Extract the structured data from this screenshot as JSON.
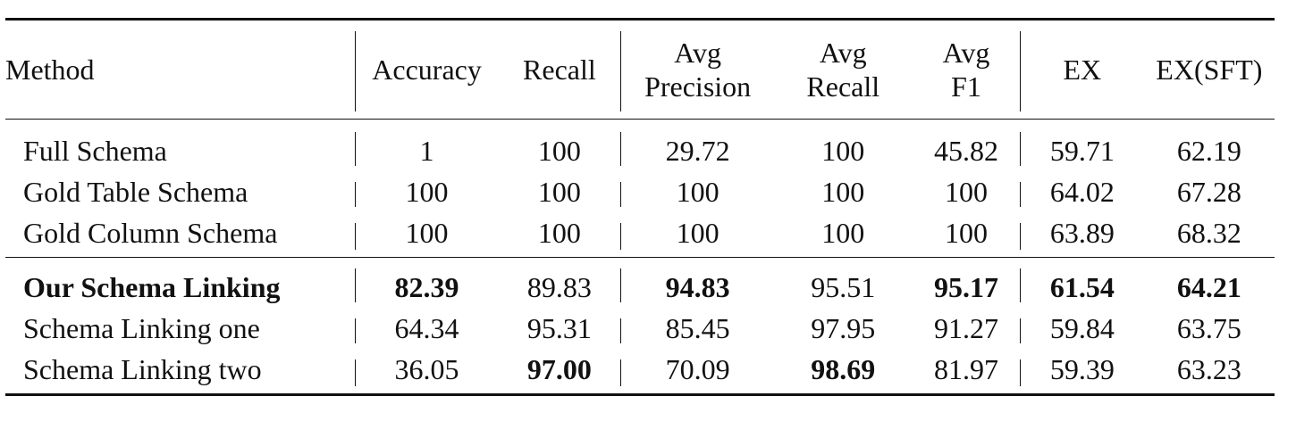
{
  "table": {
    "headers": {
      "method": "Method",
      "accuracy": "Accuracy",
      "recall": "Recall",
      "avg_precision_line1": "Avg",
      "avg_precision_line2": "Precision",
      "avg_recall_line1": "Avg",
      "avg_recall_line2": "Recall",
      "avg_f1_line1": "Avg",
      "avg_f1_line2": "F1",
      "ex": "EX",
      "ex_sft": "EX(SFT)"
    },
    "groups": [
      {
        "rows": [
          {
            "method": "Full Schema",
            "accuracy": "1",
            "recall": "100",
            "avg_precision": "29.72",
            "avg_recall": "100",
            "avg_f1": "45.82",
            "ex": "59.71",
            "ex_sft": "62.19"
          },
          {
            "method": "Gold Table Schema",
            "accuracy": "100",
            "recall": "100",
            "avg_precision": "100",
            "avg_recall": "100",
            "avg_f1": "100",
            "ex": "64.02",
            "ex_sft": "67.28"
          },
          {
            "method": "Gold Column Schema",
            "accuracy": "100",
            "recall": "100",
            "avg_precision": "100",
            "avg_recall": "100",
            "avg_f1": "100",
            "ex": "63.89",
            "ex_sft": "68.32"
          }
        ]
      },
      {
        "rows": [
          {
            "method": "Our Schema Linking",
            "accuracy": "82.39",
            "recall": "89.83",
            "avg_precision": "94.83",
            "avg_recall": "95.51",
            "avg_f1": "95.17",
            "ex": "61.54",
            "ex_sft": "64.21"
          },
          {
            "method": "Schema Linking one",
            "accuracy": "64.34",
            "recall": "95.31",
            "avg_precision": "85.45",
            "avg_recall": "97.95",
            "avg_f1": "91.27",
            "ex": "59.84",
            "ex_sft": "63.75"
          },
          {
            "method": "Schema Linking two",
            "accuracy": "36.05",
            "recall": "97.00",
            "avg_precision": "70.09",
            "avg_recall": "98.69",
            "avg_f1": "81.97",
            "ex": "59.39",
            "ex_sft": "63.23"
          }
        ]
      }
    ]
  }
}
